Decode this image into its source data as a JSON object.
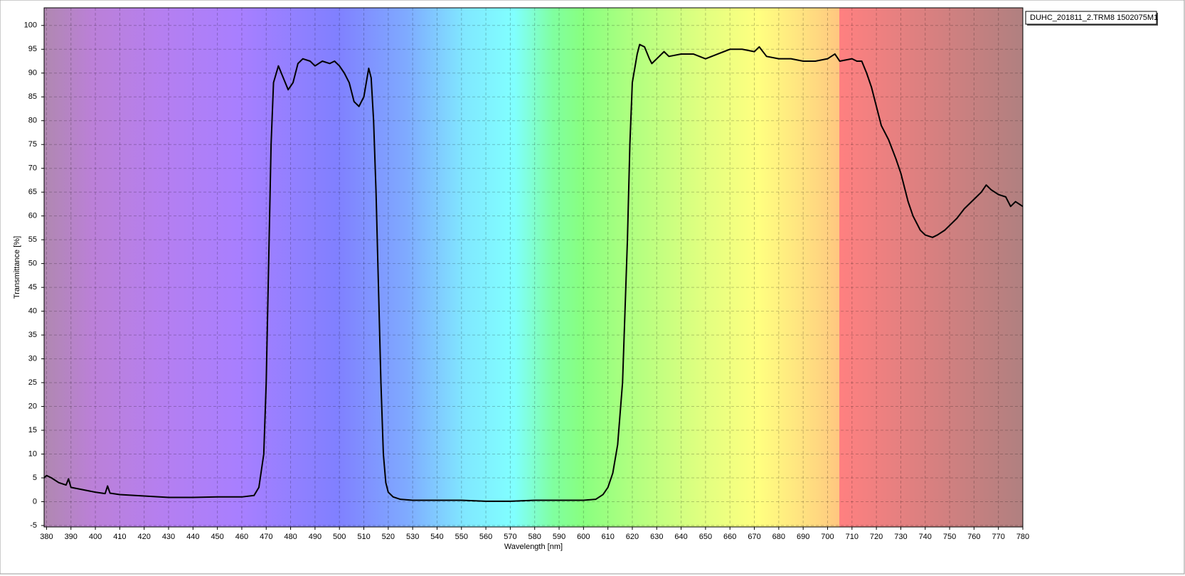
{
  "chart_data": {
    "type": "line",
    "x_label": "Wavelength [nm]",
    "y_label": "Transmittance [%]",
    "x": [
      379,
      380,
      382,
      385,
      388,
      389,
      390,
      395,
      400,
      404,
      405,
      406,
      410,
      420,
      430,
      440,
      450,
      460,
      465,
      467,
      469,
      470,
      471,
      472,
      473,
      475,
      477,
      479,
      481,
      483,
      485,
      488,
      490,
      493,
      496,
      498,
      500,
      502,
      504,
      506,
      508,
      510,
      512,
      513,
      514,
      515,
      516,
      517,
      518,
      519,
      520,
      522,
      525,
      530,
      550,
      560,
      570,
      580,
      600,
      605,
      608,
      610,
      612,
      614,
      616,
      617,
      618,
      619,
      620,
      622,
      623,
      625,
      627,
      628,
      630,
      633,
      635,
      640,
      645,
      650,
      655,
      660,
      665,
      670,
      672,
      675,
      680,
      685,
      690,
      695,
      700,
      703,
      705,
      710,
      712,
      714,
      716,
      718,
      720,
      722,
      725,
      728,
      730,
      733,
      735,
      738,
      740,
      743,
      745,
      748,
      750,
      753,
      756,
      760,
      763,
      765,
      767,
      770,
      773,
      775,
      777,
      780
    ],
    "series": [
      {
        "name": "DUHC_201811_2.TRM8 1502075M1",
        "color": "#000000",
        "values": [
          5,
          5.5,
          5,
          4,
          3.5,
          4.8,
          3,
          2.5,
          2,
          1.7,
          3.3,
          1.8,
          1.5,
          1.2,
          0.9,
          0.9,
          1,
          1,
          1.3,
          3,
          10,
          25,
          50,
          75,
          88,
          91.5,
          89,
          86.5,
          88,
          92,
          93,
          92.5,
          91.5,
          92.5,
          92,
          92.5,
          91.5,
          90,
          88,
          84,
          83,
          85,
          91,
          89,
          80,
          65,
          45,
          25,
          10,
          4,
          2,
          1,
          0.5,
          0.3,
          0.3,
          0.1,
          0.1,
          0.3,
          0.3,
          0.5,
          1.5,
          3,
          6,
          12,
          25,
          40,
          55,
          75,
          88,
          94,
          96,
          95.5,
          93,
          92,
          93,
          94.5,
          93.5,
          94,
          94,
          93,
          94,
          95,
          95,
          94.5,
          95.5,
          93.5,
          93,
          93,
          92.5,
          92.5,
          93,
          94,
          92.5,
          93,
          92.5,
          92.5,
          90,
          87,
          83,
          79,
          76,
          72,
          69,
          63,
          60,
          57,
          56,
          55.5,
          56,
          57,
          58,
          59.5,
          61.5,
          63.5,
          65,
          66.5,
          65.5,
          64.5,
          64,
          62,
          63,
          62
        ]
      }
    ],
    "xlim": [
      379,
      780
    ],
    "ylim": [
      -5.3,
      103.7
    ],
    "xticks": [
      380,
      390,
      400,
      410,
      420,
      430,
      440,
      450,
      460,
      470,
      480,
      490,
      500,
      510,
      520,
      530,
      540,
      550,
      560,
      570,
      580,
      590,
      600,
      610,
      620,
      630,
      640,
      650,
      660,
      670,
      680,
      690,
      700,
      710,
      720,
      730,
      740,
      750,
      760,
      770,
      780
    ],
    "yticks": [
      -5,
      0,
      5,
      10,
      15,
      20,
      25,
      30,
      35,
      40,
      45,
      50,
      55,
      60,
      65,
      70,
      75,
      80,
      85,
      90,
      95,
      100
    ],
    "grid": true
  }
}
